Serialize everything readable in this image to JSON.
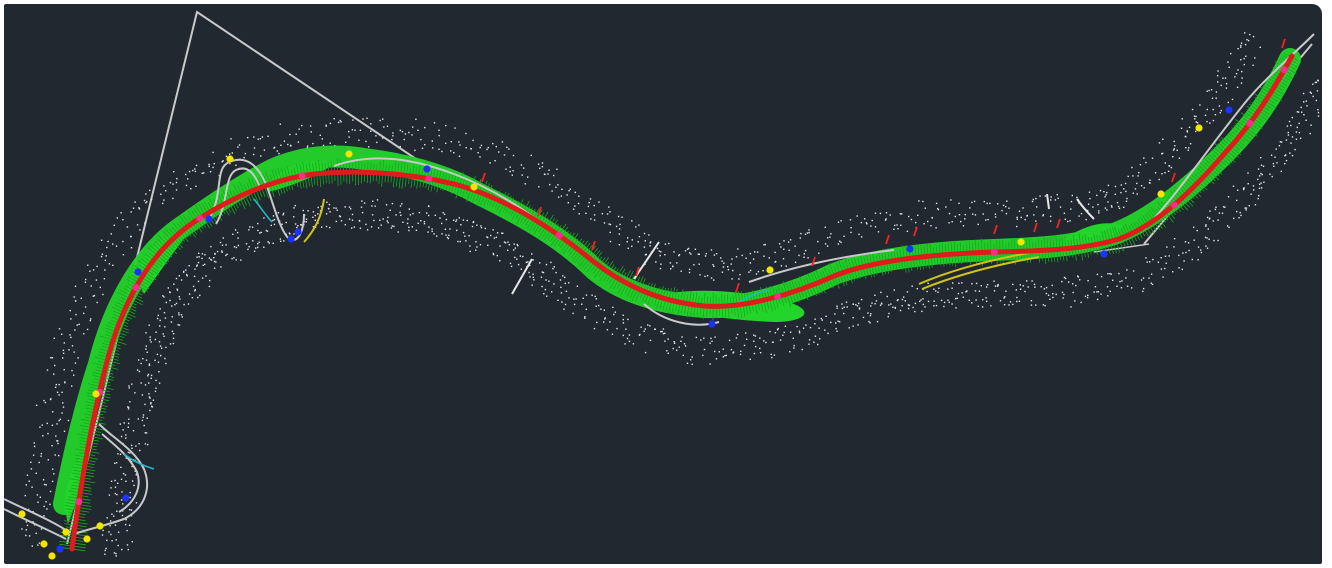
{
  "drawing": {
    "background": "#212830",
    "colors": {
      "alignment": "#e01b1b",
      "grading": "#23d42a",
      "edge_lines": "#c8c8c8",
      "survey_points": "#e8e8e8",
      "stations": "#ff2a8a",
      "markers_yellow": "#f2e600",
      "markers_blue": "#1a33ff",
      "ramp": "#d2c318",
      "cyan_lines": "#23b8c8",
      "red_ticks": "#ff2020"
    }
  }
}
